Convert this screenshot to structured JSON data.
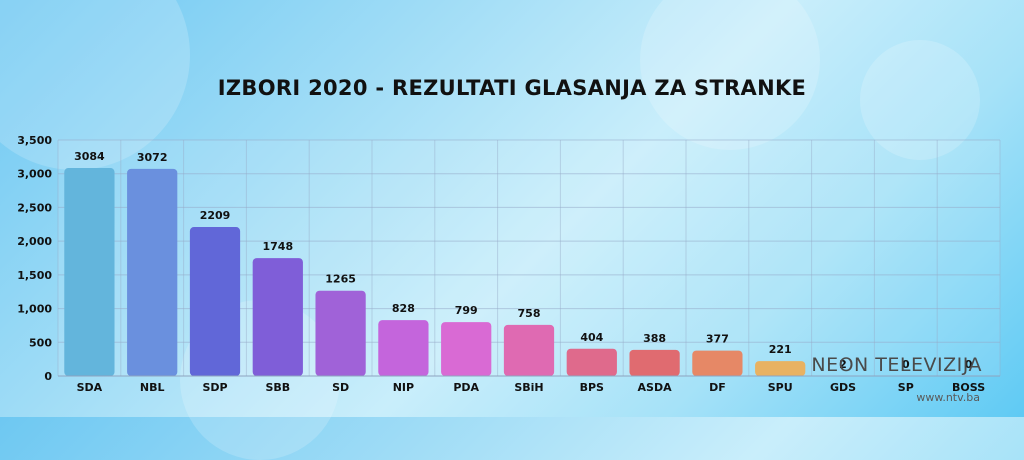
{
  "chart_data": {
    "type": "bar",
    "title": "IZBORI 2020 - REZULTATI GLASANJA ZA STRANKE",
    "categories": [
      "SDA",
      "NBL",
      "SDP",
      "SBB",
      "SD",
      "NIP",
      "PDA",
      "SBiH",
      "BPS",
      "ASDA",
      "DF",
      "SPU",
      "GDS",
      "SP",
      "BOSS"
    ],
    "values": [
      3084,
      3072,
      2209,
      1748,
      1265,
      828,
      799,
      758,
      404,
      388,
      377,
      221,
      2,
      0,
      0
    ],
    "data_labels": [
      "3084",
      "3072",
      "2209",
      "1748",
      "1265",
      "828",
      "799",
      "758",
      "404",
      "388",
      "377",
      "221",
      "2",
      "0",
      "0"
    ],
    "yticks": [
      "0",
      "500",
      "1,000",
      "1,500",
      "2,000",
      "2,500",
      "3,000",
      "3,500"
    ],
    "ylim": [
      0,
      3500
    ],
    "grid": true,
    "colors": [
      "#63b5dc",
      "#6a90de",
      "#6167d8",
      "#7f5ed8",
      "#a062d8",
      "#c465dc",
      "#d96ad4",
      "#df6ab2",
      "#df6a8c",
      "#e06b70",
      "#e68866",
      "#e8b262",
      "#e8c85e",
      "#e8c85e",
      "#e8c85e"
    ]
  },
  "watermark": {
    "brand": "NEON TELEVIZIJA",
    "url": "www.ntv.ba"
  }
}
